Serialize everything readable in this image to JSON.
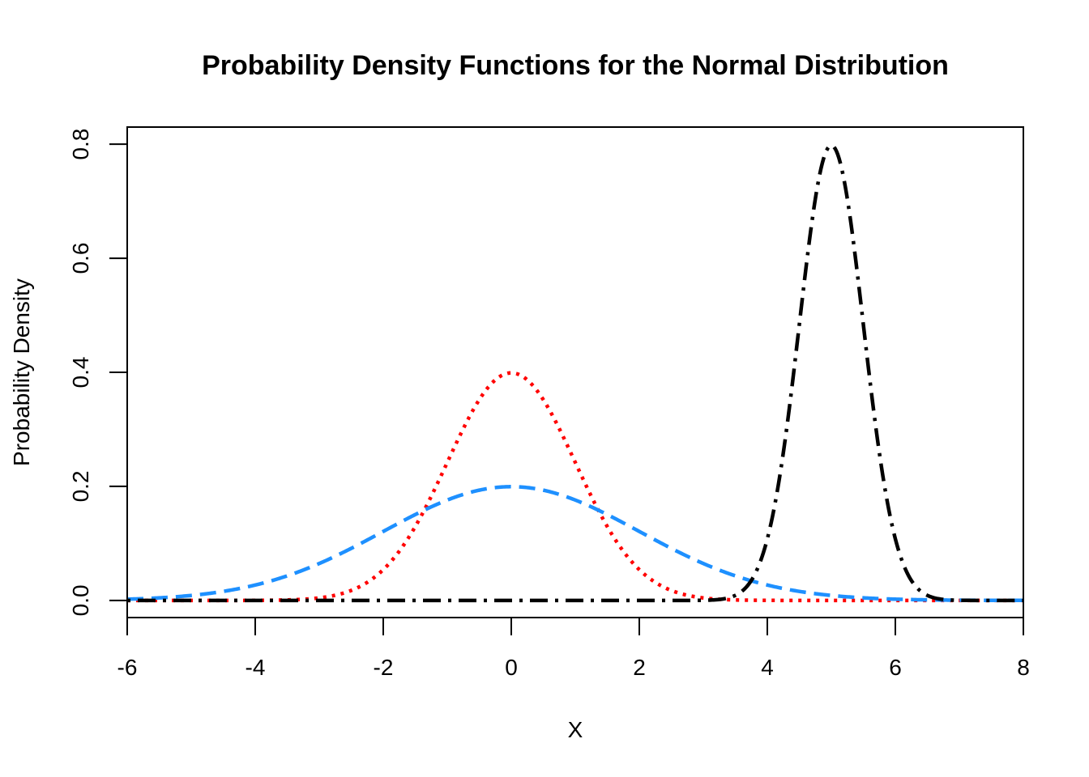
{
  "chart_data": {
    "type": "line",
    "title": "Probability Density Functions for the Normal Distribution",
    "xlabel": "X",
    "ylabel": "Probability Density",
    "xlim": [
      -6,
      8
    ],
    "ylim": [
      -0.03,
      0.83
    ],
    "x_ticks": [
      "-6",
      "-4",
      "-2",
      "0",
      "2",
      "4",
      "6",
      "8"
    ],
    "y_ticks": [
      "0.0",
      "0.2",
      "0.4",
      "0.6",
      "0.8"
    ],
    "grid": false,
    "legend": "none",
    "series": [
      {
        "mean": 0,
        "sd": 1,
        "color": "#FF0000",
        "style": "dotted",
        "x_range": [
          -6,
          8
        ]
      },
      {
        "mean": 0,
        "sd": 2,
        "color": "#1E90FF",
        "style": "dashed",
        "x_range": [
          -6,
          8
        ]
      },
      {
        "mean": 5,
        "sd": 0.5,
        "color": "#000000",
        "style": "dotdash",
        "x_range": [
          -6,
          8
        ]
      }
    ]
  }
}
